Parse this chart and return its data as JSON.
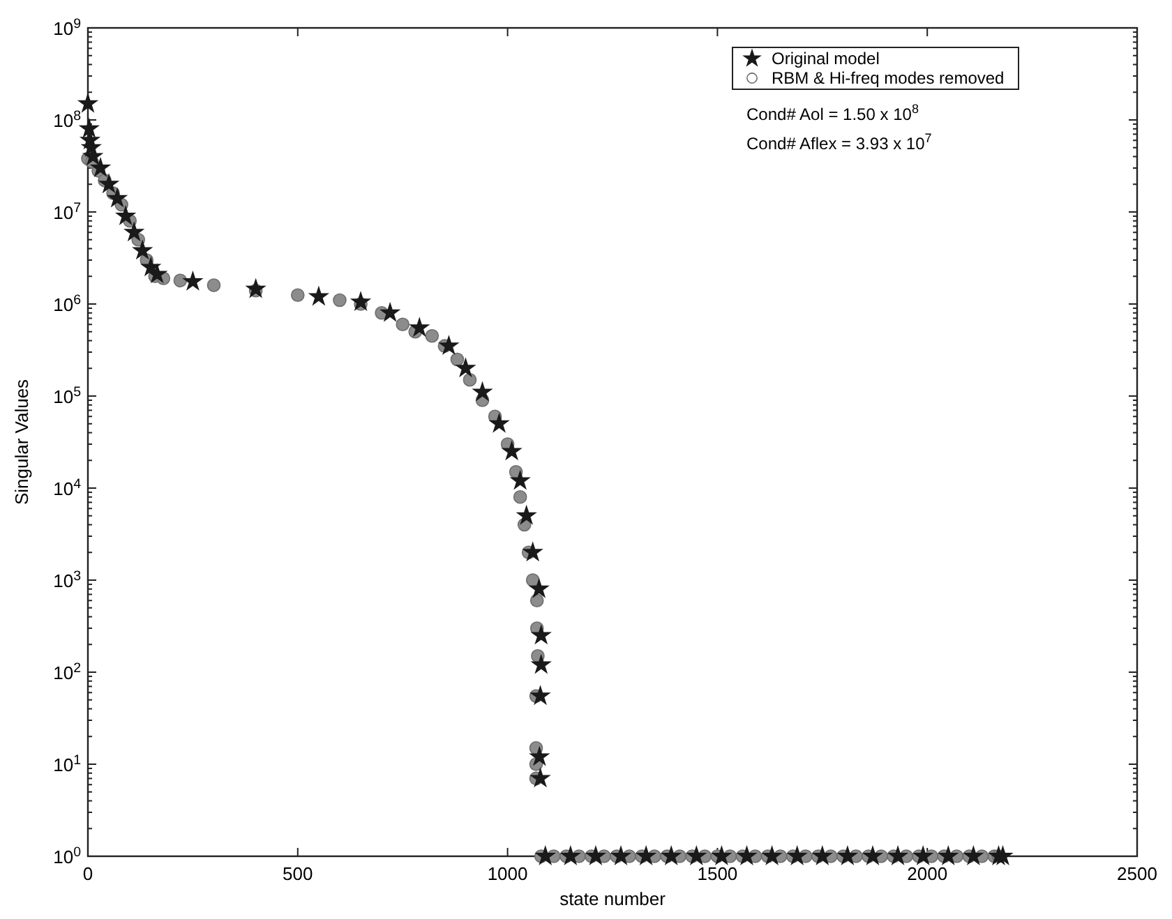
{
  "chart_data": {
    "type": "scatter",
    "xlabel": "state number",
    "ylabel": "Singular Values",
    "log": "y",
    "xlim": [
      0,
      2500
    ],
    "xticks": [
      0,
      500,
      1000,
      1500,
      2000,
      2500
    ],
    "ylim": [
      1,
      1000000000
    ],
    "yticks": [
      {
        "value": 1,
        "label": "10$^{0}$"
      },
      {
        "value": 10,
        "label": "10$^{1}$"
      },
      {
        "value": 100,
        "label": "10$^{2}$"
      },
      {
        "value": 1000,
        "label": "10$^{3}$"
      },
      {
        "value": 10000,
        "label": "10$^{4}$"
      },
      {
        "value": 100000,
        "label": "10$^{5}$"
      },
      {
        "value": 1000000,
        "label": "10$^{6}$"
      },
      {
        "value": 10000000,
        "label": "10$^{7}$"
      },
      {
        "value": 100000000,
        "label": "10$^{8}$"
      },
      {
        "value": 1000000000,
        "label": "10$^{9}$"
      }
    ],
    "grid": false,
    "legend": "top right",
    "annotations": [
      "Cond# Aol = 1.50 x 10$^{8}$",
      "Cond# Aflex = 3.93 x 10$^{7}$"
    ],
    "series": [
      {
        "name": "RBM & Hi-freq modes removed",
        "color": "#8c8c8c",
        "marker": "circle",
        "x": [
          0,
          10,
          25,
          40,
          60,
          80,
          100,
          120,
          140,
          160,
          180,
          220,
          300,
          400,
          500,
          600,
          650,
          700,
          750,
          780,
          820,
          850,
          880,
          910,
          940,
          970,
          1000,
          1020,
          1030,
          1040,
          1050,
          1060,
          1070,
          1070,
          1072,
          1068,
          1068,
          1068,
          1068,
          1080,
          1110,
          1140,
          1170,
          1200,
          1230,
          1260,
          1290,
          1320,
          1350,
          1380,
          1410,
          1440,
          1470,
          1500,
          1530,
          1560,
          1590,
          1620,
          1650,
          1680,
          1710,
          1740,
          1770,
          1800,
          1830,
          1860,
          1890,
          1920,
          1950,
          1980,
          2010,
          2040,
          2070,
          2100,
          2130,
          2160,
          2170
        ],
        "values": [
          38000000,
          35000000,
          28000000,
          22000000,
          16000000,
          12000000,
          8000000,
          5000000,
          3000000,
          2000000,
          1900000,
          1800000,
          1600000,
          1400000,
          1250000,
          1100000,
          1000000,
          800000,
          600000,
          500000,
          450000,
          350000,
          250000,
          150000,
          90000,
          60000,
          30000,
          15000,
          8000,
          4000,
          2000,
          1000,
          600,
          300,
          150,
          55,
          15,
          10,
          7,
          1,
          1,
          1,
          1,
          1,
          1,
          1,
          1,
          1,
          1,
          1,
          1,
          1,
          1,
          1,
          1,
          1,
          1,
          1,
          1,
          1,
          1,
          1,
          1,
          1,
          1,
          1,
          1,
          1,
          1,
          1,
          1,
          1,
          1,
          1,
          1,
          1,
          1
        ]
      },
      {
        "name": "Original model",
        "color": "#1a1a1a",
        "marker": "star",
        "x": [
          0,
          3,
          5,
          8,
          12,
          30,
          50,
          70,
          90,
          110,
          130,
          150,
          165,
          250,
          400,
          550,
          650,
          720,
          790,
          860,
          900,
          940,
          980,
          1010,
          1030,
          1045,
          1060,
          1075,
          1080,
          1080,
          1078,
          1076,
          1078,
          1090,
          1150,
          1210,
          1270,
          1330,
          1390,
          1450,
          1510,
          1570,
          1630,
          1690,
          1750,
          1810,
          1870,
          1930,
          1990,
          2050,
          2110,
          2170,
          2180
        ],
        "values": [
          150000000,
          80000000,
          60000000,
          50000000,
          40000000,
          30000000,
          20000000,
          14000000,
          9000000,
          6000000,
          3800000,
          2500000,
          2100000,
          1750000,
          1450000,
          1200000,
          1050000,
          800000,
          550000,
          350000,
          200000,
          110000,
          50000,
          25000,
          12000,
          5000,
          2000,
          800,
          250,
          120,
          55,
          12,
          7,
          1,
          1,
          1,
          1,
          1,
          1,
          1,
          1,
          1,
          1,
          1,
          1,
          1,
          1,
          1,
          1,
          1,
          1,
          1,
          1
        ]
      }
    ]
  }
}
